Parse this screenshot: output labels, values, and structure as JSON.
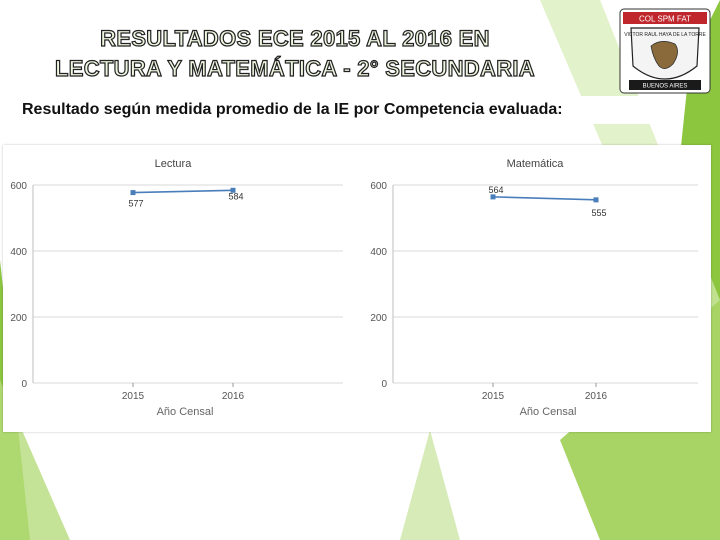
{
  "slide": {
    "title_line1": "RESULTADOS ECE 2015 AL 2016 EN",
    "title_line2": "LECTURA Y MATEMÁTICA - 2° SECUNDARIA",
    "subtitle": "Resultado según medida promedio de la IE por Competencia evaluada:"
  },
  "logo": {
    "top_text": "COL SPM FAT",
    "arc_text": "VICTOR RAUL HAYA DE LA TORRE",
    "bottom_text": "BUENOS AIRES"
  },
  "colors": {
    "line": "#4a7ebb",
    "accent_green": "#8cc63f",
    "light_green": "#d6ecb3"
  },
  "chart_data": [
    {
      "type": "line",
      "title": "Lectura",
      "x": [
        "2015",
        "2016"
      ],
      "series": [
        {
          "values": [
            577,
            584
          ]
        }
      ],
      "data_labels": [
        "577",
        "584"
      ],
      "xlabel": "Año Censal",
      "ylabel": "",
      "ylim": [
        0,
        600
      ],
      "yticks": [
        0,
        200,
        400,
        600
      ],
      "grid": true
    },
    {
      "type": "line",
      "title": "Matemática",
      "x": [
        "2015",
        "2016"
      ],
      "series": [
        {
          "values": [
            564,
            555
          ]
        }
      ],
      "data_labels": [
        "564",
        "555"
      ],
      "xlabel": "Año Censal",
      "ylabel": "",
      "ylim": [
        0,
        600
      ],
      "yticks": [
        0,
        200,
        400,
        600
      ],
      "grid": true
    }
  ]
}
